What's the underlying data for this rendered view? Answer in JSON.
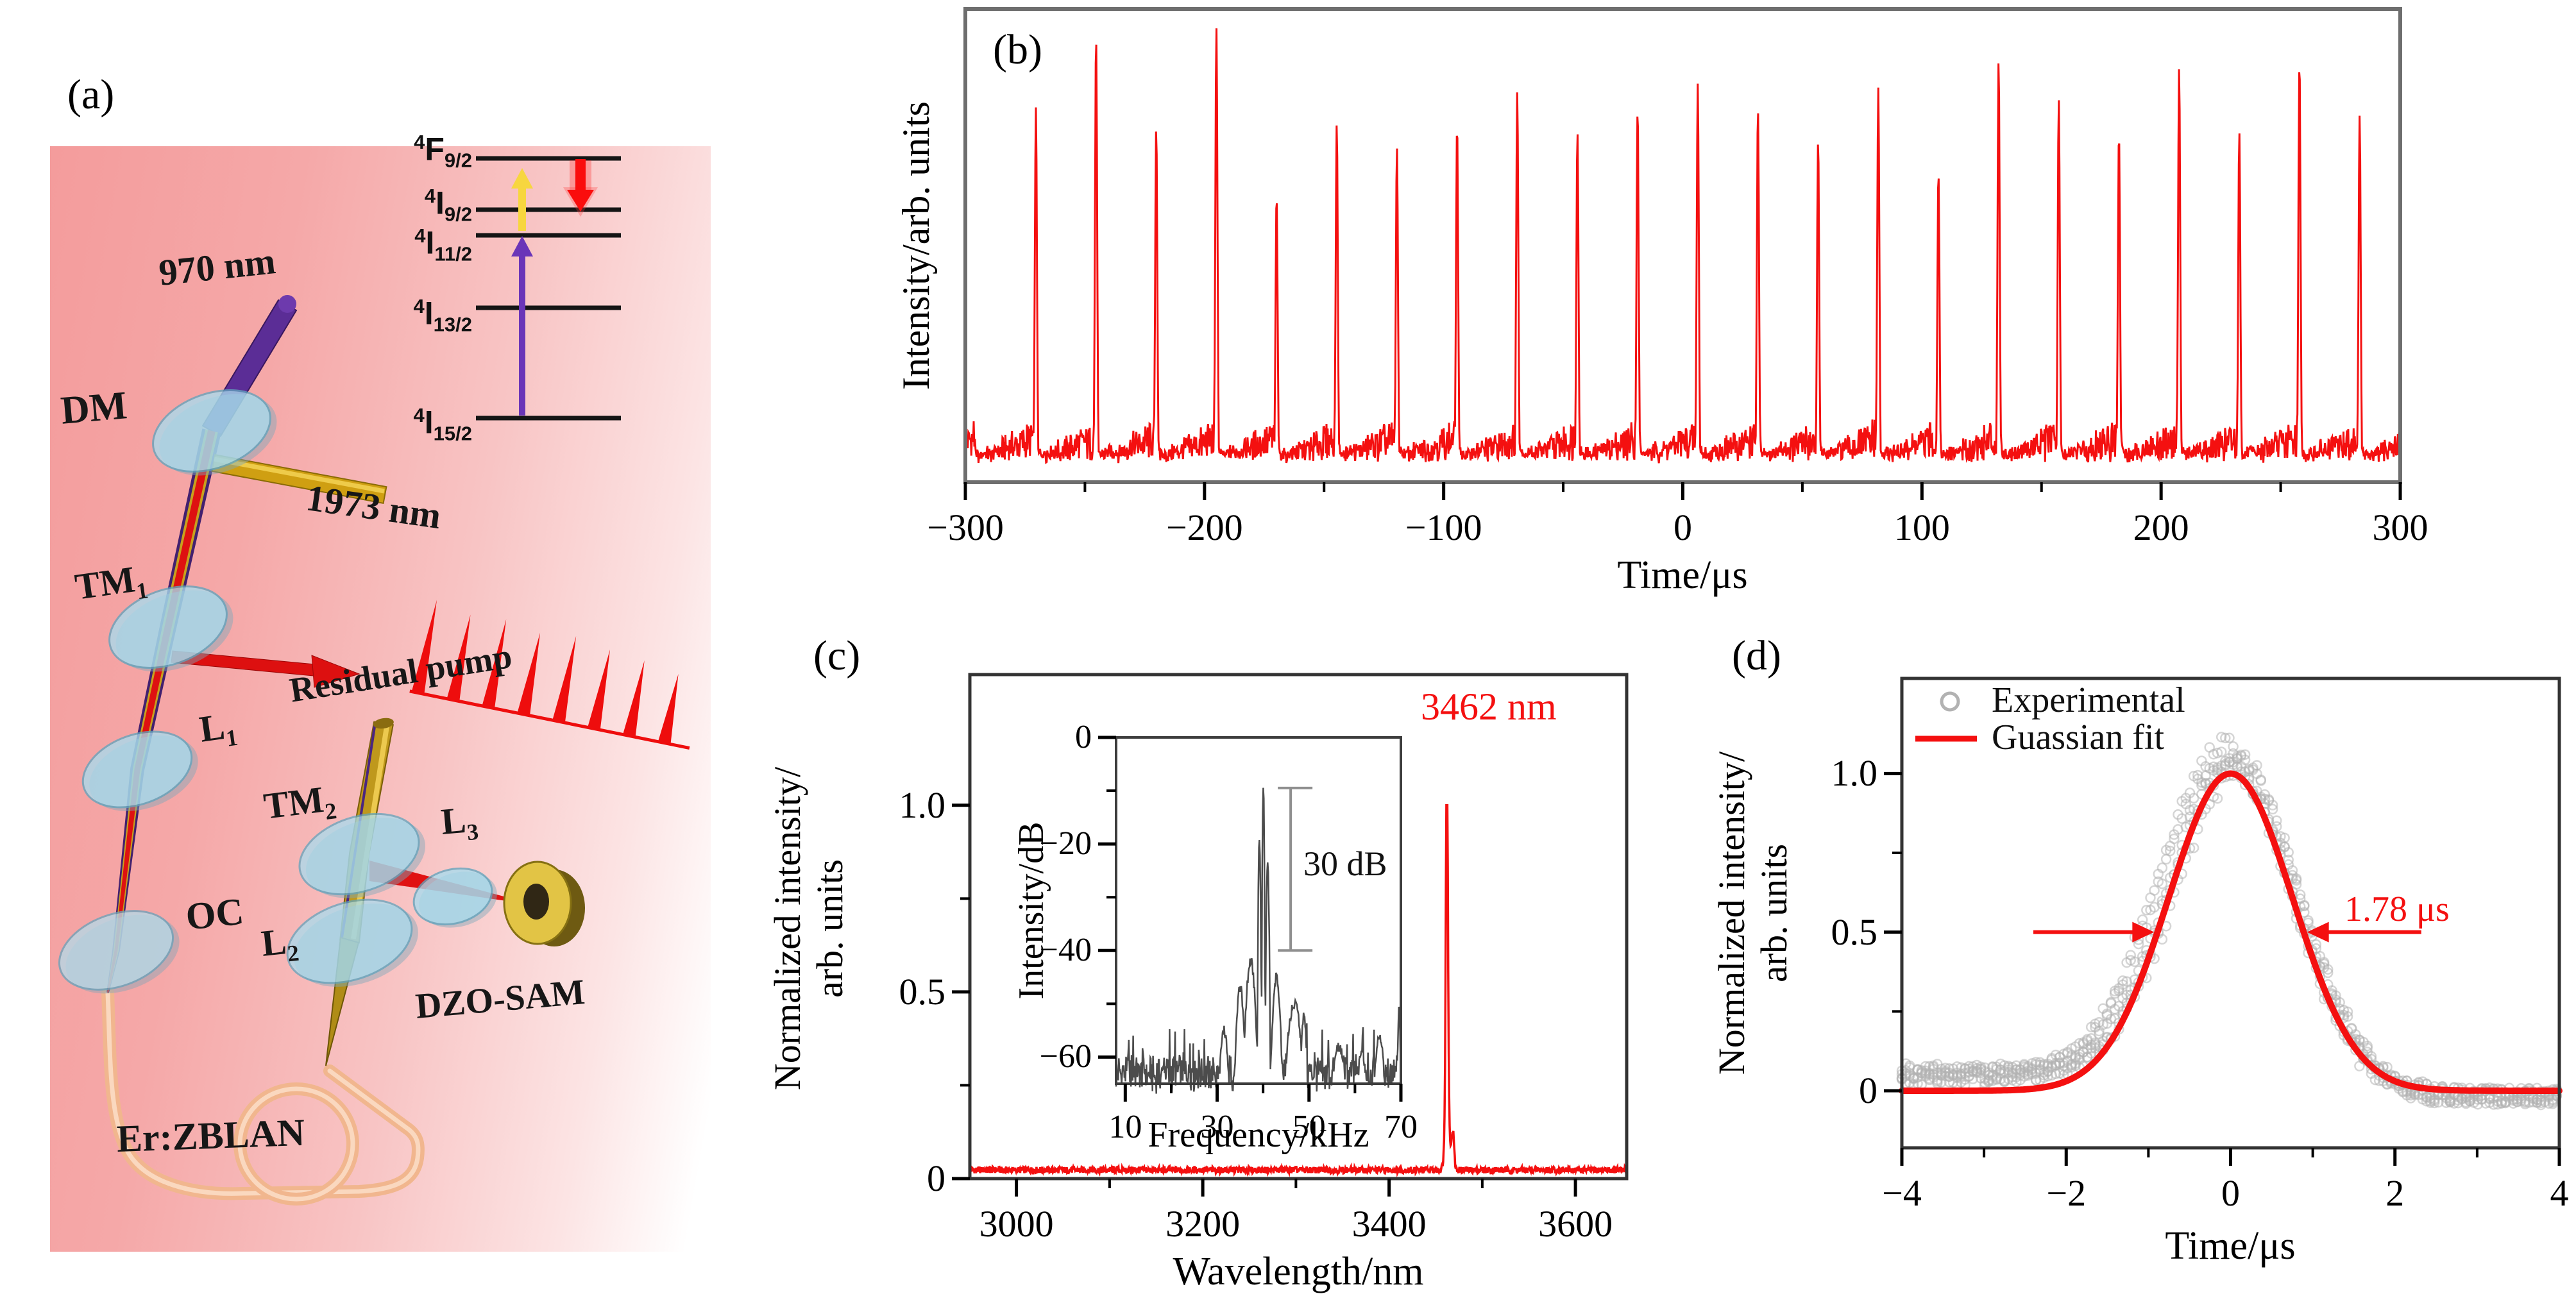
{
  "figure": {
    "panel_letters": {
      "a": "(a)",
      "b": "(b)",
      "c": "(c)",
      "d": "(d)"
    }
  },
  "panel_a": {
    "labels": {
      "pump": "970 nm",
      "dm": "DM",
      "tm1_base": "TM",
      "tm1_sub": "1",
      "extracted": "1973 nm",
      "l1_base": "L",
      "l1_sub": "1",
      "oc": "OC",
      "residual_pump": "Residual pump",
      "tm2_base": "TM",
      "tm2_sub": "2",
      "l3_base": "L",
      "l3_sub": "3",
      "l2_base": "L",
      "l2_sub": "2",
      "dzo_sam": "DZO-SAM",
      "gain_fiber": "Er:ZBLAN"
    },
    "energy_levels": [
      {
        "sup": "4",
        "base": "F",
        "sub": "9/2"
      },
      {
        "sup": "4",
        "base": "I",
        "sub": "9/2"
      },
      {
        "sup": "4",
        "base": "I",
        "sub": "11/2"
      },
      {
        "sup": "4",
        "base": "I",
        "sub": "13/2"
      },
      {
        "sup": "4",
        "base": "I",
        "sub": "15/2"
      }
    ],
    "colors": {
      "pump_beam": "#5b2d96",
      "signal_beam": "#de1111",
      "extracted_beam": "#cf9f12",
      "lens": "#a8dcee",
      "fiber": "#f1b68e",
      "sam_gold": "#e2c445"
    }
  },
  "chart_data": [
    {
      "id": "b",
      "type": "line",
      "xlabel": "Time/μs",
      "ylabel": "Intensity/arb. units",
      "xlim": [
        -300,
        300
      ],
      "xticks": [
        -300,
        -200,
        -100,
        0,
        100,
        200,
        300
      ],
      "xtick_labels": [
        "−300",
        "−200",
        "−100",
        "0",
        "100",
        "200",
        "300"
      ],
      "xminor": [
        -250,
        -150,
        -50,
        50,
        150,
        250
      ],
      "line_color": "#f41010",
      "pulse_train": {
        "t0_us": -270.5,
        "period_us": 25.16,
        "count": 23,
        "peak_heights": [
          0.8,
          0.98,
          0.75,
          1.0,
          0.58,
          0.76,
          0.7,
          0.76,
          0.84,
          0.74,
          0.8,
          0.86,
          0.8,
          0.72,
          0.85,
          0.64,
          0.92,
          0.82,
          0.74,
          0.9,
          0.74,
          0.92,
          0.78
        ],
        "baseline_level": 0.07
      }
    },
    {
      "id": "c",
      "type": "line",
      "xlabel": "Wavelength/nm",
      "ylabel_line1": "Normalized intensity/",
      "ylabel_line2": "arb. units",
      "xlim": [
        2950,
        3655
      ],
      "ylim": [
        0,
        1.35
      ],
      "xticks": [
        3000,
        3200,
        3400,
        3600
      ],
      "xtick_labels": [
        "3000",
        "3200",
        "3400",
        "3600"
      ],
      "xminor": [
        3100,
        3300,
        3500
      ],
      "yticks": [
        0,
        0.5,
        1.0
      ],
      "ytick_labels": [
        "0",
        "0.5",
        "1.0"
      ],
      "yminor": [
        0.25,
        0.75
      ],
      "baseline": 0.02,
      "peak": {
        "center_nm": 3462,
        "height": 1.0,
        "annotation": "3462 nm"
      },
      "line_color": "#f41010",
      "annotation_color": "#f41010"
    },
    {
      "id": "c_inset",
      "type": "line",
      "xlabel": "Frequency/kHz",
      "ylabel": "Intensity/dB",
      "xlim": [
        8,
        70
      ],
      "ylim": [
        -65,
        0
      ],
      "xticks": [
        10,
        30,
        50,
        70
      ],
      "xtick_labels": [
        "10",
        "30",
        "50",
        "70"
      ],
      "xminor": [
        20,
        40,
        60
      ],
      "yticks": [
        0,
        -20,
        -40,
        -60
      ],
      "ytick_labels": [
        "0",
        "−20",
        "−40",
        "−60"
      ],
      "yminor": [
        -10,
        -30,
        -50
      ],
      "main_peak": {
        "freq_khz": 40,
        "level_db": -8.6
      },
      "noise_floor_db": -65,
      "snr_annotation": "30 dB",
      "line_color": "#4c4c4c"
    },
    {
      "id": "d",
      "type": "scatter+line",
      "xlabel": "Time/μs",
      "ylabel_line1": "Normalized intensity/",
      "ylabel_line2": "arb. units",
      "xlim": [
        -4,
        4
      ],
      "ylim": [
        -0.18,
        1.3
      ],
      "xticks": [
        -4,
        -2,
        0,
        2,
        4
      ],
      "xtick_labels": [
        "−4",
        "−2",
        "0",
        "2",
        "4"
      ],
      "xminor": [
        -3,
        -1,
        1,
        3
      ],
      "yticks": [
        0,
        0.5,
        1.0
      ],
      "ytick_labels": [
        "0",
        "0.5",
        "1.0"
      ],
      "yminor": [
        0.25,
        0.75
      ],
      "legend": [
        {
          "label": "Experimental",
          "marker": "circle",
          "color": "#b2b2b2"
        },
        {
          "label": "Guassian fit",
          "marker": "line",
          "color": "#f41010"
        }
      ],
      "gaussian_fit": {
        "center_us": 0,
        "peak": 1.0,
        "fwhm_us": 1.78
      },
      "fwhm_annotation": "1.78 μs",
      "scatter_color": "#b2b2b2",
      "fit_color": "#f41010",
      "annotation_color": "#f41010"
    }
  ]
}
